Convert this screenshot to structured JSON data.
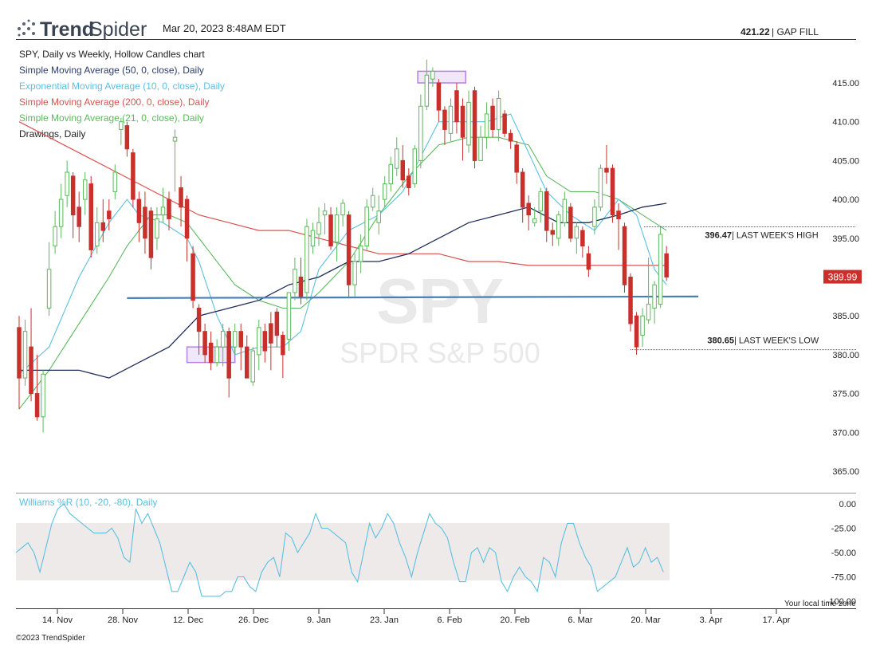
{
  "header": {
    "brand_bold": "Trend",
    "brand_light": "Spider",
    "timestamp": "Mar 20, 2023 8:48AM EDT",
    "gap_fill_value": "421.22",
    "gap_fill_label": "| GAP FILL",
    "icon": "trendspider-logo-icon"
  },
  "legend": [
    {
      "text": "SPY, Daily vs Weekly, Hollow Candles chart",
      "color": "#222222"
    },
    {
      "text": "Simple Moving Average (50, 0, close), Daily",
      "color": "#2c3e6b"
    },
    {
      "text": "Exponential Moving Average (10, 0, close), Daily",
      "color": "#5bc0de"
    },
    {
      "text": "Simple Moving Average (200, 0, close), Daily",
      "color": "#d9534f"
    },
    {
      "text": "Simple Moving Average (21, 0, close), Daily",
      "color": "#5cb85c"
    },
    {
      "text": "Drawings, Daily",
      "color": "#222222"
    }
  ],
  "watermark": {
    "symbol": "SPY",
    "name": "SPDR S&P 500"
  },
  "annotations": {
    "high_value": "396.47",
    "high_label": "| LAST WEEK'S HIGH",
    "low_value": "380.65",
    "low_label": "| LAST WEEK'S LOW",
    "last_price": "389.99"
  },
  "williams": {
    "label": "Williams %R (10, -20, -80), Daily",
    "ticks": [
      "0.00",
      "-25.00",
      "-50.00",
      "-75.00",
      "-100.00"
    ]
  },
  "x_ticks": [
    "14. Nov",
    "28. Nov",
    "12. Dec",
    "26. Dec",
    "9. Jan",
    "23. Jan",
    "6. Feb",
    "20. Feb",
    "6. Mar",
    "20. Mar",
    "3. Apr",
    "17. Apr"
  ],
  "y_ticks": [
    "415.00",
    "410.00",
    "405.00",
    "400.00",
    "395.00",
    "390.00",
    "385.00",
    "380.00",
    "375.00",
    "370.00",
    "365.00"
  ],
  "footer": {
    "copyright": "©2023 TrendSpider",
    "timezone": "Your local time zone"
  },
  "colors": {
    "up": "#5cb85c",
    "down": "#c9302c",
    "sma50": "#1f2d5a",
    "ema10": "#5bc0de",
    "sma200": "#d9534f",
    "sma21": "#5cb85c",
    "support": "#4a7fb5",
    "box": "#b980e6"
  },
  "chart_data": {
    "type": "candlestick",
    "y_range": [
      362,
      420
    ],
    "dates_approx": [
      "2022-11-04",
      "2023-03-17"
    ],
    "candles": [
      [
        383.5,
        377.0,
        385.0,
        373.0
      ],
      [
        377.0,
        383.0,
        384.5,
        376.0
      ],
      [
        381.0,
        375.0,
        386.0,
        374.0
      ],
      [
        375.0,
        372.0,
        380.0,
        371.5
      ],
      [
        372.0,
        377.5,
        378.0,
        370.0
      ],
      [
        386.0,
        391.0,
        394.5,
        385.0
      ],
      [
        394.0,
        396.5,
        398.5,
        393.0
      ],
      [
        396.5,
        400.0,
        402.0,
        395.0
      ],
      [
        400.5,
        403.5,
        405.0,
        399.0
      ],
      [
        403.0,
        398.0,
        403.5,
        395.0
      ],
      [
        399.0,
        396.5,
        401.0,
        394.5
      ],
      [
        400.0,
        402.5,
        403.5,
        398.0
      ],
      [
        402.0,
        393.5,
        403.0,
        392.5
      ],
      [
        394.0,
        397.0,
        399.0,
        393.0
      ],
      [
        397.0,
        396.0,
        400.0,
        394.5
      ],
      [
        398.5,
        397.5,
        400.0,
        396.0
      ],
      [
        401.0,
        403.5,
        404.5,
        400.0
      ],
      [
        409.0,
        410.0,
        410.5,
        407.0
      ],
      [
        409.5,
        406.5,
        410.0,
        405.5
      ],
      [
        406.0,
        400.0,
        406.5,
        399.0
      ],
      [
        400.0,
        397.0,
        401.0,
        394.5
      ],
      [
        399.0,
        395.0,
        401.0,
        393.0
      ],
      [
        398.5,
        392.5,
        399.0,
        391.0
      ],
      [
        395.0,
        397.5,
        399.0,
        393.5
      ],
      [
        398.0,
        399.0,
        401.5,
        397.0
      ],
      [
        400.0,
        397.5,
        401.0,
        396.0
      ],
      [
        407.5,
        408.0,
        409.0,
        401.0
      ],
      [
        401.5,
        399.0,
        403.0,
        396.5
      ],
      [
        400.0,
        395.0,
        400.5,
        392.0
      ],
      [
        393.0,
        387.0,
        394.0,
        386.0
      ],
      [
        386.0,
        383.0,
        386.5,
        380.0
      ],
      [
        383.0,
        380.0,
        384.0,
        379.0
      ],
      [
        381.5,
        379.0,
        383.0,
        378.0
      ],
      [
        379.0,
        381.0,
        382.0,
        378.5
      ],
      [
        381.0,
        383.0,
        384.0,
        378.5
      ],
      [
        383.0,
        377.0,
        383.5,
        374.5
      ],
      [
        381.0,
        383.0,
        384.0,
        380.0
      ],
      [
        383.0,
        381.0,
        384.0,
        378.0
      ],
      [
        381.0,
        377.0,
        382.5,
        377.0
      ],
      [
        376.5,
        380.5,
        381.0,
        376.0
      ],
      [
        380.0,
        383.5,
        384.5,
        378.0
      ],
      [
        383.0,
        380.5,
        384.0,
        379.0
      ],
      [
        384.0,
        381.5,
        385.5,
        378.0
      ],
      [
        385.5,
        382.5,
        386.0,
        381.0
      ],
      [
        382.5,
        380.0,
        383.0,
        377.0
      ],
      [
        382.0,
        388.0,
        388.0,
        380.5
      ],
      [
        388.0,
        391.0,
        392.5,
        387.0
      ],
      [
        390.0,
        387.5,
        392.5,
        386.5
      ],
      [
        388.0,
        396.5,
        397.5,
        387.0
      ],
      [
        394.0,
        396.0,
        397.0,
        393.0
      ],
      [
        395.5,
        397.0,
        399.0,
        394.0
      ],
      [
        398.0,
        398.5,
        399.5,
        395.5
      ],
      [
        398.0,
        394.0,
        399.0,
        393.5
      ],
      [
        394.5,
        398.0,
        399.0,
        392.0
      ],
      [
        398.0,
        399.5,
        400.0,
        396.5
      ],
      [
        398.0,
        389.0,
        398.5,
        387.5
      ],
      [
        389.0,
        392.0,
        393.0,
        387.5
      ],
      [
        392.0,
        394.0,
        395.5,
        390.5
      ],
      [
        394.0,
        399.0,
        400.0,
        393.5
      ],
      [
        399.0,
        400.5,
        401.5,
        398.5
      ],
      [
        397.0,
        398.5,
        400.5,
        395.5
      ],
      [
        400.0,
        402.0,
        403.0,
        399.0
      ],
      [
        402.0,
        404.5,
        405.5,
        401.0
      ],
      [
        404.0,
        406.5,
        408.0,
        403.0
      ],
      [
        405.0,
        402.5,
        407.0,
        401.5
      ],
      [
        403.0,
        401.5,
        404.0,
        400.5
      ],
      [
        402.0,
        406.5,
        407.0,
        401.5
      ],
      [
        405.0,
        412.0,
        413.5,
        404.0
      ],
      [
        412.0,
        416.0,
        418.0,
        411.5
      ],
      [
        415.5,
        416.5,
        417.0,
        414.5
      ],
      [
        415.0,
        411.5,
        415.5,
        410.0
      ],
      [
        411.5,
        409.0,
        412.0,
        407.0
      ],
      [
        408.5,
        412.0,
        413.0,
        407.5
      ],
      [
        414.0,
        410.0,
        415.0,
        408.5
      ],
      [
        412.0,
        408.0,
        413.0,
        405.0
      ],
      [
        407.0,
        412.5,
        414.0,
        406.0
      ],
      [
        414.0,
        405.0,
        414.5,
        404.0
      ],
      [
        405.0,
        408.0,
        409.5,
        405.0
      ],
      [
        408.0,
        411.0,
        412.5,
        406.5
      ],
      [
        412.0,
        409.0,
        413.0,
        408.0
      ],
      [
        409.0,
        413.0,
        414.0,
        407.5
      ],
      [
        411.0,
        408.5,
        411.5,
        408.0
      ],
      [
        408.5,
        407.5,
        409.0,
        406.5
      ],
      [
        407.0,
        403.5,
        407.5,
        402.0
      ],
      [
        403.5,
        399.0,
        404.0,
        397.0
      ],
      [
        399.5,
        398.0,
        400.5,
        396.0
      ],
      [
        397.0,
        397.5,
        399.0,
        396.5
      ],
      [
        398.5,
        401.0,
        401.5,
        397.0
      ],
      [
        401.0,
        396.0,
        401.5,
        394.5
      ],
      [
        396.0,
        395.5,
        397.0,
        394.0
      ],
      [
        395.0,
        398.0,
        398.5,
        394.0
      ],
      [
        397.0,
        400.0,
        401.0,
        396.5
      ],
      [
        399.0,
        395.0,
        399.5,
        394.5
      ],
      [
        395.0,
        396.5,
        397.0,
        393.0
      ],
      [
        396.0,
        394.0,
        396.5,
        392.5
      ],
      [
        393.0,
        391.0,
        394.0,
        390.0
      ],
      [
        396.5,
        399.0,
        400.0,
        395.5
      ],
      [
        399.0,
        404.0,
        404.5,
        398.5
      ],
      [
        404.0,
        403.5,
        407.0,
        402.0
      ],
      [
        404.0,
        398.0,
        404.5,
        397.0
      ],
      [
        398.5,
        397.5,
        399.5,
        393.5
      ],
      [
        396.5,
        389.0,
        397.0,
        388.0
      ],
      [
        390.0,
        384.0,
        390.5,
        383.0
      ],
      [
        385.0,
        381.0,
        385.5,
        380.0
      ],
      [
        382.5,
        385.0,
        386.0,
        381.0
      ],
      [
        384.5,
        386.5,
        392.5,
        384.0
      ],
      [
        386.0,
        389.0,
        389.5,
        384.0
      ],
      [
        386.5,
        395.5,
        396.5,
        386.0
      ],
      [
        393.0,
        390.0,
        394.0,
        389.5
      ]
    ],
    "sma50": [
      [
        0,
        378
      ],
      [
        10,
        378
      ],
      [
        15,
        377
      ],
      [
        20,
        379
      ],
      [
        25,
        381
      ],
      [
        30,
        385
      ],
      [
        35,
        386
      ],
      [
        40,
        387
      ],
      [
        45,
        389
      ],
      [
        50,
        390
      ],
      [
        55,
        392
      ],
      [
        60,
        392
      ],
      [
        65,
        393
      ],
      [
        70,
        395
      ],
      [
        75,
        397
      ],
      [
        80,
        398
      ],
      [
        85,
        399
      ],
      [
        90,
        397
      ],
      [
        95,
        397
      ],
      [
        100,
        398
      ],
      [
        104,
        399
      ],
      [
        108,
        399.5
      ]
    ],
    "ema10": [
      [
        0,
        377.5
      ],
      [
        5,
        381
      ],
      [
        10,
        390
      ],
      [
        15,
        397
      ],
      [
        18,
        400
      ],
      [
        20,
        398
      ],
      [
        24,
        397
      ],
      [
        28,
        395
      ],
      [
        30,
        392
      ],
      [
        33,
        385
      ],
      [
        36,
        380
      ],
      [
        40,
        381
      ],
      [
        44,
        381
      ],
      [
        47,
        383
      ],
      [
        50,
        391
      ],
      [
        55,
        396
      ],
      [
        60,
        398
      ],
      [
        64,
        401
      ],
      [
        68,
        407
      ],
      [
        70,
        410
      ],
      [
        74,
        410
      ],
      [
        78,
        410
      ],
      [
        82,
        411
      ],
      [
        85,
        406
      ],
      [
        88,
        401
      ],
      [
        92,
        398
      ],
      [
        96,
        396
      ],
      [
        100,
        400
      ],
      [
        103,
        398
      ],
      [
        106,
        391
      ],
      [
        108,
        389
      ]
    ],
    "sma200": [
      [
        0,
        410
      ],
      [
        5,
        408
      ],
      [
        10,
        406
      ],
      [
        15,
        404
      ],
      [
        20,
        402
      ],
      [
        25,
        400
      ],
      [
        30,
        398
      ],
      [
        35,
        397
      ],
      [
        40,
        396
      ],
      [
        45,
        396
      ],
      [
        50,
        395
      ],
      [
        55,
        394
      ],
      [
        60,
        393
      ],
      [
        65,
        393
      ],
      [
        70,
        393
      ],
      [
        75,
        392
      ],
      [
        80,
        392
      ],
      [
        85,
        391.5
      ],
      [
        90,
        391.5
      ],
      [
        95,
        391.5
      ],
      [
        100,
        391.5
      ],
      [
        104,
        391.5
      ],
      [
        108,
        391.5
      ]
    ],
    "sma21": [
      [
        0,
        373
      ],
      [
        5,
        378
      ],
      [
        10,
        384
      ],
      [
        15,
        390
      ],
      [
        18,
        394
      ],
      [
        22,
        398
      ],
      [
        25,
        398
      ],
      [
        28,
        397
      ],
      [
        32,
        393
      ],
      [
        36,
        389
      ],
      [
        40,
        387
      ],
      [
        44,
        386
      ],
      [
        47,
        386
      ],
      [
        50,
        388
      ],
      [
        55,
        392
      ],
      [
        60,
        398
      ],
      [
        65,
        403
      ],
      [
        70,
        407
      ],
      [
        75,
        408
      ],
      [
        80,
        408
      ],
      [
        85,
        407
      ],
      [
        88,
        403
      ],
      [
        92,
        401
      ],
      [
        96,
        401
      ],
      [
        100,
        400
      ],
      [
        104,
        398
      ],
      [
        108,
        396
      ]
    ],
    "support_line": {
      "from": [
        18,
        387.5
      ],
      "to": [
        108,
        387.5
      ]
    },
    "boxes": [
      {
        "x0": 66.5,
        "x1": 74.5,
        "y0": 415,
        "y1": 416.5
      },
      {
        "x0": 28,
        "x1": 36,
        "y0": 379,
        "y1": 381
      }
    ],
    "levels": {
      "last_week_high": 396.47,
      "last_week_low": 380.65,
      "last_price": 389.99
    },
    "williams_r": [
      -50,
      -45,
      -40,
      -50,
      -70,
      -45,
      -20,
      -5,
      0,
      -10,
      -15,
      -20,
      -25,
      -30,
      -30,
      -30,
      -25,
      -35,
      -55,
      -60,
      -5,
      -20,
      -10,
      -25,
      -40,
      -65,
      -90,
      -90,
      -75,
      -60,
      -70,
      -95,
      -95,
      -95,
      -95,
      -90,
      -90,
      -75,
      -75,
      -85,
      -90,
      -70,
      -60,
      -55,
      -75,
      -30,
      -35,
      -50,
      -40,
      -30,
      -10,
      -25,
      -25,
      -30,
      -35,
      -40,
      -70,
      -80,
      -50,
      -20,
      -35,
      -25,
      -10,
      -20,
      -40,
      -55,
      -75,
      -50,
      -30,
      -10,
      -20,
      -25,
      -35,
      -60,
      -80,
      -80,
      -50,
      -45,
      -60,
      -45,
      -50,
      -80,
      -90,
      -75,
      -65,
      -75,
      -80,
      -90,
      -55,
      -60,
      -75,
      -40,
      -20,
      -20,
      -40,
      -55,
      -65,
      -90,
      -85,
      -80,
      -75,
      -60,
      -45,
      -65,
      -60,
      -45,
      -60,
      -55,
      -70
    ]
  }
}
